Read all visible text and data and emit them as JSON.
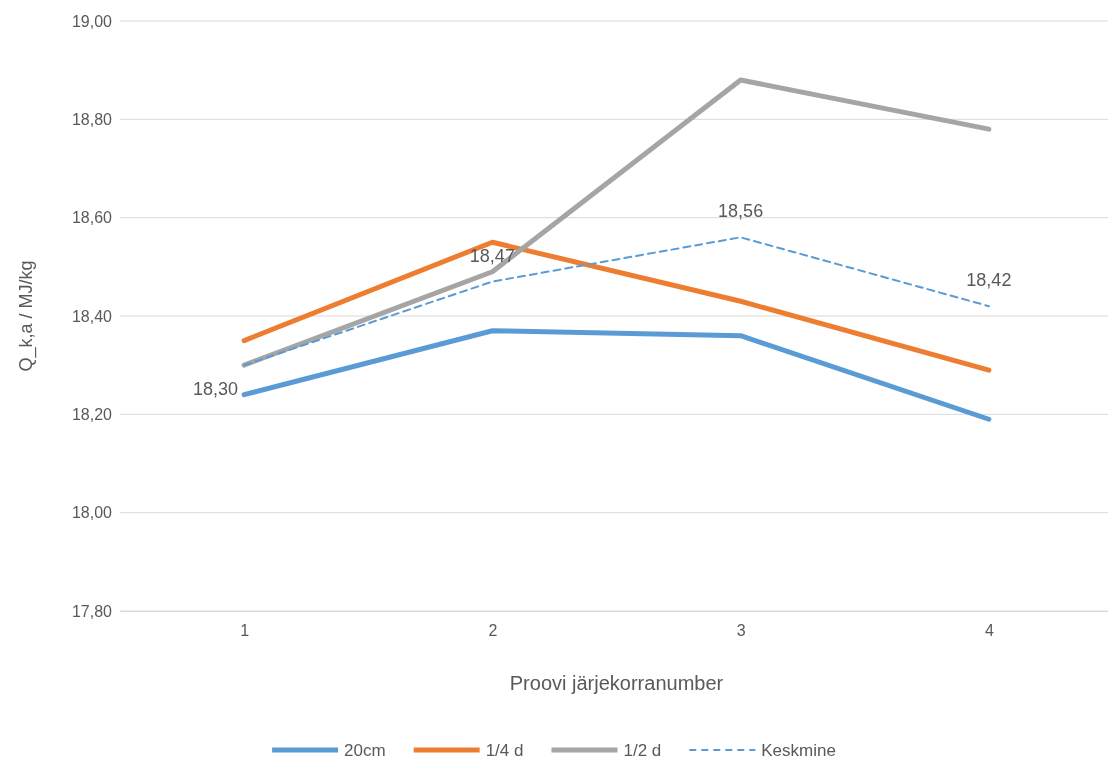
{
  "chart_data": {
    "type": "line",
    "xlabel": "Proovi järjekorranumber",
    "ylabel": "Q_k,a / MJ/kg",
    "categories": [
      "1",
      "2",
      "3",
      "4"
    ],
    "series": [
      {
        "name": "20cm",
        "color": "#5b9bd5",
        "values": [
          18.24,
          18.37,
          18.36,
          18.19
        ]
      },
      {
        "name": "1/4 d",
        "color": "#ed7d31",
        "values": [
          18.35,
          18.55,
          18.43,
          18.29
        ]
      },
      {
        "name": "1/2 d",
        "color": "#a5a5a5",
        "values": [
          18.3,
          18.49,
          18.88,
          18.78
        ]
      },
      {
        "name": "Keskmine",
        "color": "#5b9bd5",
        "line_style": "dashed",
        "values": [
          18.3,
          18.47,
          18.56,
          18.42
        ],
        "value_labels": [
          "18,30",
          "18,47",
          "18,56",
          "18,42"
        ]
      }
    ],
    "ylim": [
      17.8,
      19.0
    ],
    "yticks": [
      {
        "value": 17.8,
        "label": "17,80"
      },
      {
        "value": 18.0,
        "label": "18,00"
      },
      {
        "value": 18.2,
        "label": "18,20"
      },
      {
        "value": 18.4,
        "label": "18,40"
      },
      {
        "value": 18.6,
        "label": "18,60"
      },
      {
        "value": 18.8,
        "label": "18,80"
      },
      {
        "value": 19.0,
        "label": "19,00"
      }
    ],
    "grid": "y",
    "legend": "bottom",
    "marker": "none",
    "line_style": "solid"
  }
}
